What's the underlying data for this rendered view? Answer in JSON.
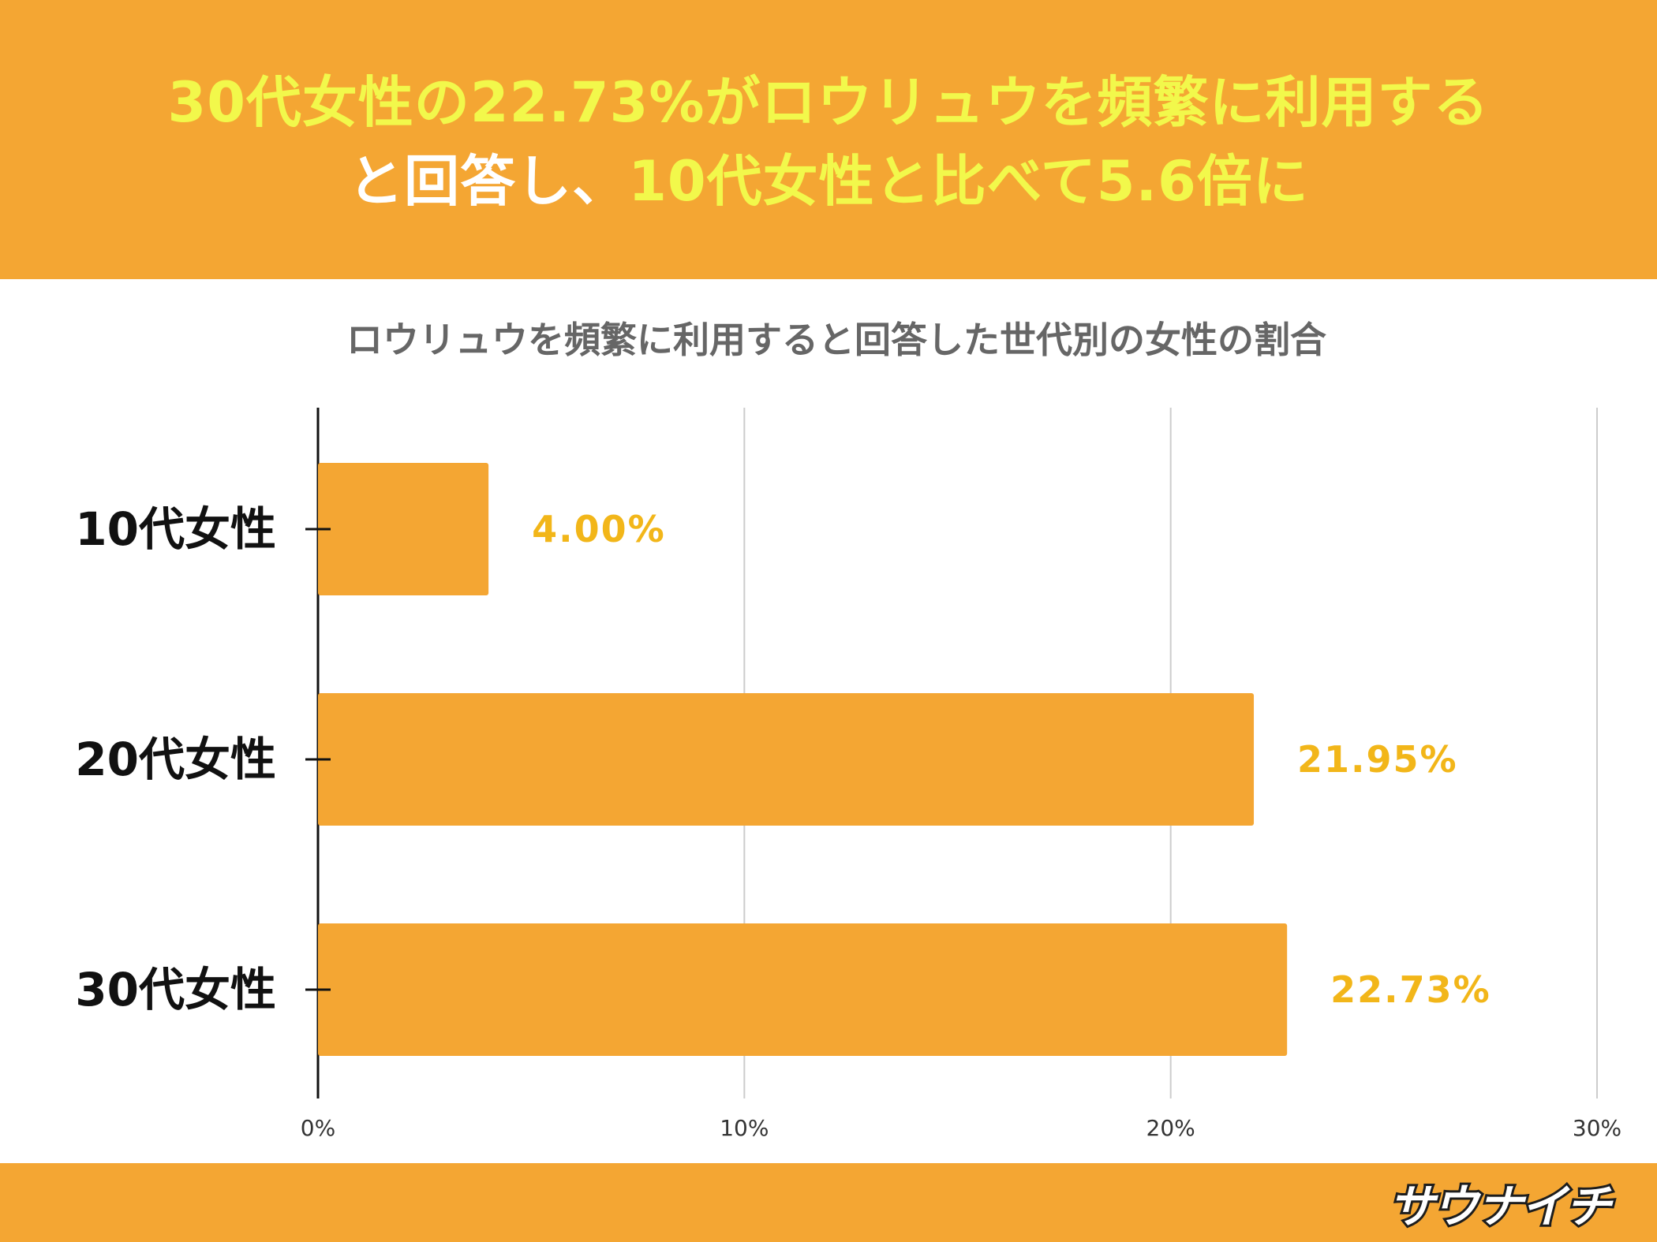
{
  "header": {
    "line1": [
      {
        "text": "30代女性の22.73%がロウリュウを頻繁に利用する",
        "color": "#f2f84b"
      }
    ],
    "line2": [
      {
        "text": "と回答し、",
        "color": "#ffffff"
      },
      {
        "text": "10代女性と比べて5.6倍に",
        "color": "#f2f84b"
      }
    ]
  },
  "chart_data": {
    "type": "bar",
    "orientation": "horizontal",
    "title": "ロウリュウを頻繁に利用すると回答した世代別の女性の割合",
    "categories": [
      "10代女性",
      "20代女性",
      "30代女性"
    ],
    "values": [
      4.0,
      21.95,
      22.73
    ],
    "data_labels": [
      "4.00%",
      "21.95%",
      "22.73%"
    ],
    "xlim": [
      0,
      30
    ],
    "xticks": [
      0,
      10,
      20,
      30
    ],
    "xtick_labels": [
      "0%",
      "10%",
      "20%",
      "30%"
    ],
    "grid": true,
    "bar_color": "#f4a633",
    "label_color": "#f2b619"
  },
  "footer": {
    "logo_text": "サウナイチ",
    "colors": {
      "band": "#f4a633"
    }
  }
}
